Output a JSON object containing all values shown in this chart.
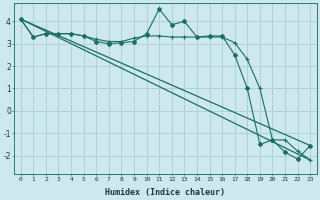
{
  "xlabel": "Humidex (Indice chaleur)",
  "bg_color": "#cde8ef",
  "grid_color": "#aacdd8",
  "line_color": "#1a6e64",
  "xlim": [
    -0.5,
    23.5
  ],
  "ylim": [
    -2.8,
    4.8
  ],
  "yticks": [
    -2,
    -1,
    0,
    1,
    2,
    3,
    4
  ],
  "xticks": [
    0,
    1,
    2,
    3,
    4,
    5,
    6,
    7,
    8,
    9,
    10,
    11,
    12,
    13,
    14,
    15,
    16,
    17,
    18,
    19,
    20,
    21,
    22,
    23
  ],
  "series1_x": [
    0,
    1,
    2,
    3,
    4,
    5,
    6,
    7,
    8,
    9,
    10,
    11,
    12,
    13,
    14,
    15,
    16,
    17,
    18,
    19,
    20,
    21,
    22,
    23
  ],
  "series1_y": [
    4.1,
    3.3,
    3.45,
    3.45,
    3.45,
    3.35,
    3.1,
    3.0,
    3.05,
    3.1,
    3.45,
    4.55,
    3.85,
    4.0,
    3.3,
    3.35,
    3.35,
    2.5,
    1.0,
    -1.5,
    -1.3,
    -1.85,
    -2.15,
    -1.55
  ],
  "series2_x": [
    0,
    1,
    2,
    3,
    4,
    5,
    6,
    7,
    8,
    9,
    10,
    11,
    12,
    13,
    14,
    15,
    16,
    17,
    18,
    19,
    20,
    21,
    22,
    23
  ],
  "series2_y": [
    4.1,
    3.3,
    3.45,
    3.45,
    3.45,
    3.35,
    3.2,
    3.1,
    3.1,
    3.25,
    3.35,
    3.35,
    3.3,
    3.3,
    3.3,
    3.3,
    3.3,
    3.05,
    2.3,
    1.0,
    -1.3,
    -1.3,
    -1.8,
    -2.2
  ],
  "line1_x": [
    0,
    23
  ],
  "line1_y": [
    4.1,
    -1.55
  ],
  "line2_x": [
    0,
    23
  ],
  "line2_y": [
    4.1,
    -2.2
  ]
}
